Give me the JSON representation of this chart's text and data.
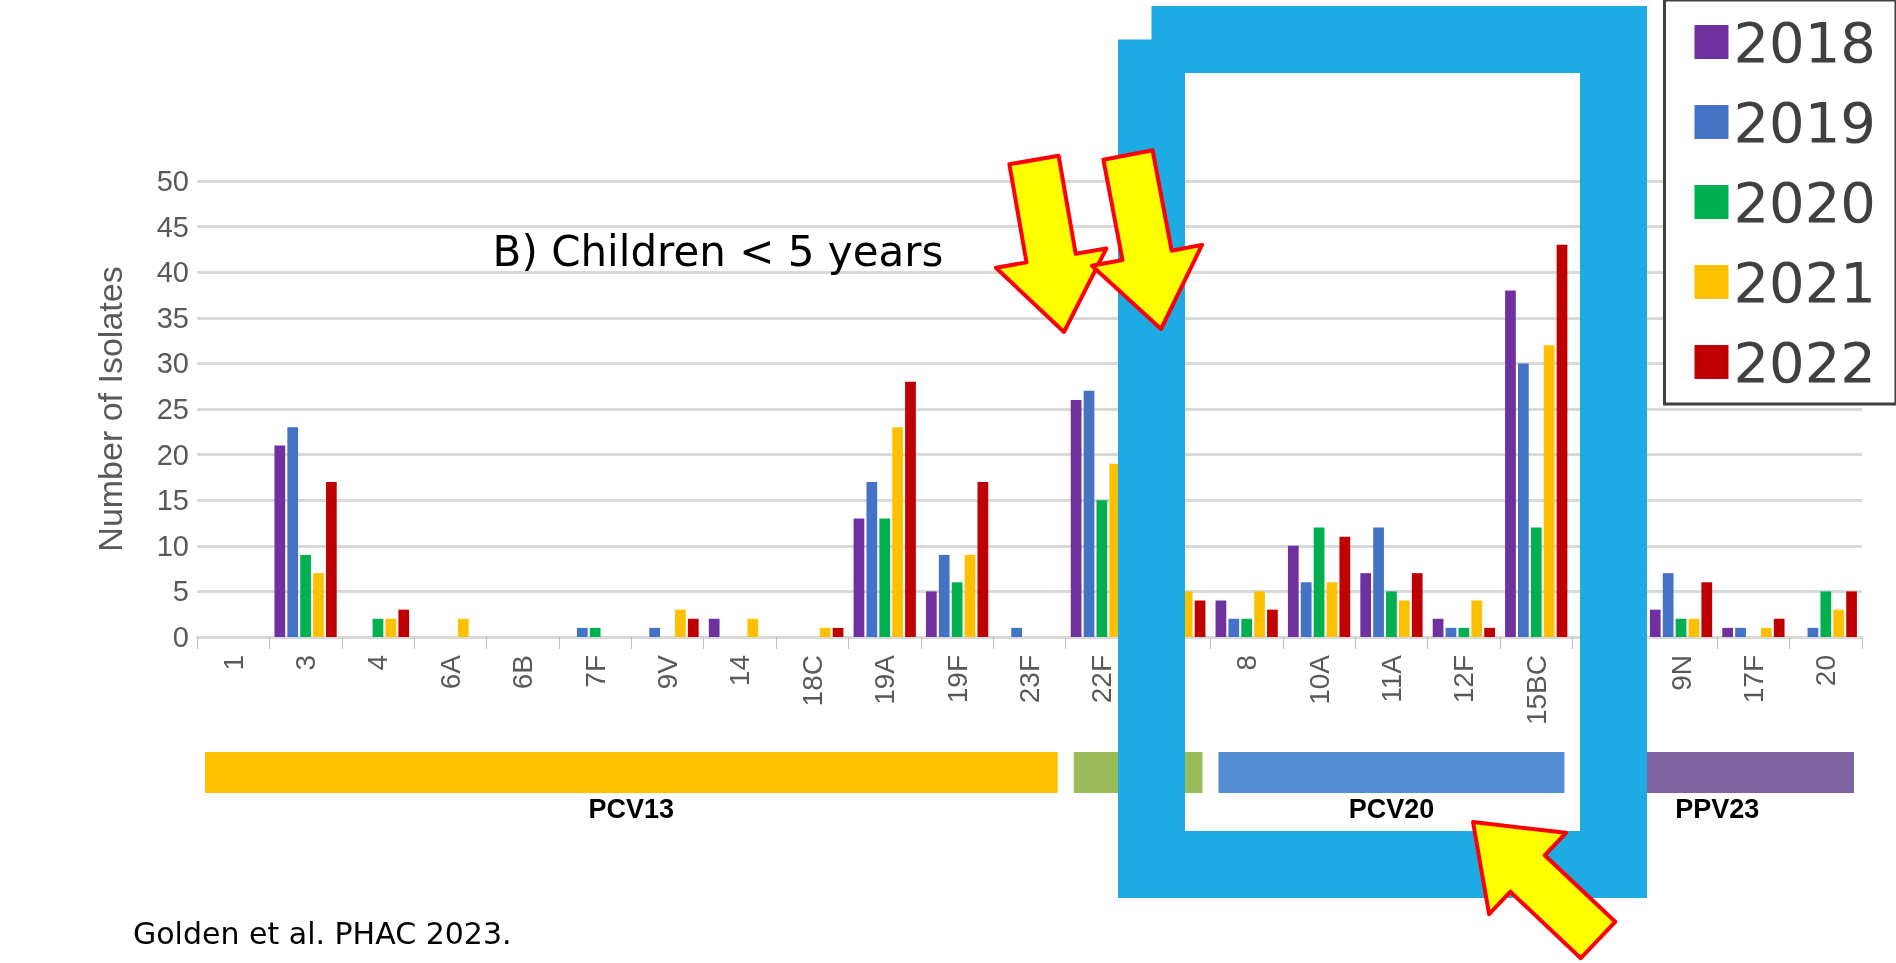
{
  "chart_data": {
    "type": "bar",
    "title": "B) Children < 5 years",
    "ylabel": "Number of Isolates",
    "categories": [
      "1",
      "3",
      "4",
      "6A",
      "6B",
      "7F",
      "9V",
      "14",
      "18C",
      "19A",
      "19F",
      "23F",
      "22F",
      null,
      "8",
      "10A",
      "11A",
      "12F",
      "15BC",
      null,
      "9N",
      "17F",
      "20"
    ],
    "series": [
      {
        "name": "2018",
        "color": "#7030a0",
        "values": [
          0,
          21,
          0,
          0,
          0,
          0,
          0,
          2,
          0,
          13,
          5,
          0,
          26,
          null,
          4,
          10,
          7,
          2,
          38,
          null,
          3,
          1,
          0
        ]
      },
      {
        "name": "2019",
        "color": "#4472c4",
        "values": [
          0,
          23,
          0,
          0,
          0,
          1,
          1,
          0,
          0,
          17,
          9,
          1,
          27,
          null,
          2,
          6,
          12,
          1,
          30,
          null,
          7,
          1,
          1
        ]
      },
      {
        "name": "2020",
        "color": "#00b050",
        "values": [
          0,
          9,
          2,
          0,
          0,
          1,
          0,
          0,
          0,
          13,
          6,
          0,
          15,
          null,
          2,
          12,
          5,
          1,
          12,
          null,
          2,
          0,
          5
        ]
      },
      {
        "name": "2021",
        "color": "#ffc000",
        "values": [
          0,
          7,
          2,
          2,
          0,
          0,
          3,
          2,
          1,
          23,
          9,
          0,
          19,
          5,
          5,
          6,
          4,
          4,
          32,
          null,
          2,
          1,
          3
        ]
      },
      {
        "name": "2022",
        "color": "#c00000",
        "values": [
          0,
          17,
          3,
          0,
          0,
          0,
          2,
          0,
          1,
          28,
          17,
          0,
          null,
          4,
          3,
          11,
          7,
          1,
          43,
          null,
          6,
          2,
          5
        ]
      }
    ],
    "ylim": [
      0,
      50
    ],
    "yticks": [
      0,
      5,
      10,
      15,
      20,
      25,
      30,
      35,
      40,
      45,
      50
    ],
    "grid": "y",
    "legend": "top right",
    "annotations": [
      "Golden et al. PHAC 2023.",
      "PCV13",
      "PCV20",
      "PPV23"
    ]
  }
}
